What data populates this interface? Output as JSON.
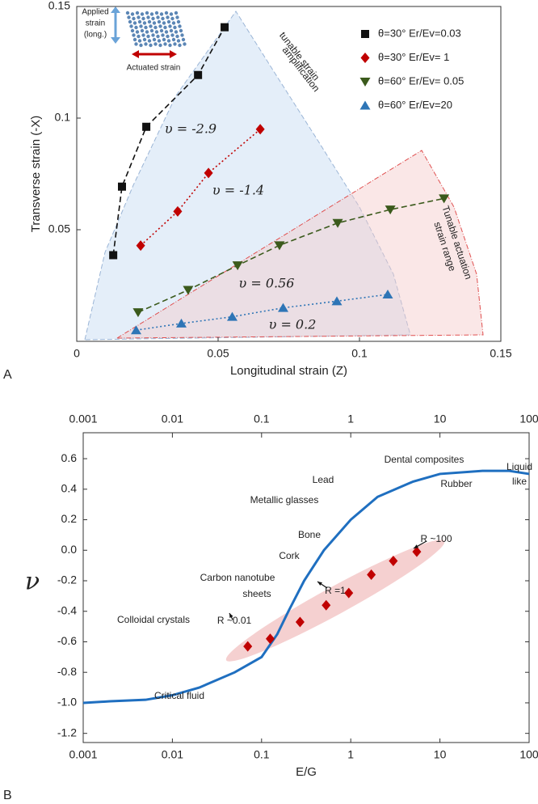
{
  "chart_data": [
    {
      "type": "line",
      "panel_label": "A",
      "x_label": "Longitudinal strain (Z)",
      "y_label": "Transverse strain (-X)",
      "xlim": [
        0,
        0.15
      ],
      "ylim": [
        0,
        0.15
      ],
      "xticks": [
        0,
        0.05,
        0.1,
        0.15
      ],
      "yticks": [
        0.05,
        0.1,
        0.15
      ],
      "legend": "upper right",
      "annotations": [
        "tunable strain",
        "amplification",
        "Tunable actuation",
        "strain range",
        "υ = -2.9",
        "υ = -1.4",
        "υ = 0.56",
        "υ = 0.2",
        "Applied",
        "strain",
        "(long.)",
        "Actuated strain"
      ],
      "series": [
        {
          "name": "θ=30°  Er/Ev=0.03",
          "color": "#111111",
          "marker": "square",
          "line": "dashed",
          "x": [
            0.0129,
            0.016,
            0.0246,
            0.0429,
            0.0523
          ],
          "values": [
            0.0386,
            0.0693,
            0.0961,
            0.1193,
            0.1407
          ]
        },
        {
          "name": "θ=30°  Er/Ev= 1",
          "color": "#c00000",
          "marker": "diamond",
          "line": "dotted",
          "x": [
            0.0226,
            0.0357,
            0.0466,
            0.0649
          ],
          "values": [
            0.0429,
            0.0582,
            0.0754,
            0.095
          ]
        },
        {
          "name": "θ=60°  Er/Ev= 0.05",
          "color": "#3b5a1c",
          "marker": "triangle-down",
          "line": "dashed",
          "x": [
            0.0217,
            0.0394,
            0.0569,
            0.0717,
            0.0923,
            0.1109,
            0.1299
          ],
          "values": [
            0.013,
            0.023,
            0.034,
            0.043,
            0.053,
            0.059,
            0.064
          ]
        },
        {
          "name": "θ=60°  Er/Ev=20",
          "color": "#2e75b6",
          "marker": "triangle-up",
          "line": "dotted",
          "x": [
            0.021,
            0.037,
            0.055,
            0.073,
            0.092,
            0.11
          ],
          "values": [
            0.005,
            0.008,
            0.011,
            0.015,
            0.018,
            0.021
          ]
        }
      ]
    },
    {
      "type": "line",
      "panel_label": "B",
      "x_label": "E/G",
      "y_label": "ν",
      "x_scale": "log",
      "xlim": [
        0.001,
        100
      ],
      "ylim": [
        -1.26,
        0.77
      ],
      "xticks": [
        0.001,
        0.01,
        0.1,
        1,
        10,
        100
      ],
      "yticks": [
        0.6,
        0.4,
        0.2,
        {
          "value": 0,
          "label": "0.0"
        },
        -0.2,
        -0.4,
        -0.6,
        -0.8,
        {
          "value": -1,
          "label": "-1.0"
        },
        -1.2
      ],
      "annotations": [
        "Dental composites",
        "Lead",
        "Rubber",
        "Liquid",
        "like",
        "Metallic glasses",
        "Bone",
        "Cork",
        "Carbon nanotube",
        "sheets",
        "Colloidal crystals",
        "Critical fluid",
        "R ~100",
        "R =1",
        "R ~0.01"
      ],
      "series": [
        {
          "color": "#1f6fc0",
          "marker": "none",
          "line": "solid",
          "x": [
            0.001,
            0.002,
            0.005,
            0.01,
            0.02,
            0.05,
            0.1,
            0.15,
            0.2,
            0.3,
            0.5,
            1,
            2,
            5,
            10,
            30,
            60,
            100
          ],
          "values": [
            -1.0,
            -0.99,
            -0.98,
            -0.95,
            -0.9,
            -0.8,
            -0.7,
            -0.55,
            -0.4,
            -0.2,
            0.0,
            0.2,
            0.35,
            0.45,
            0.5,
            0.52,
            0.52,
            0.5
          ]
        },
        {
          "color": "#c00000",
          "marker": "diamond",
          "line": "none",
          "x": [
            0.07,
            0.125,
            0.27,
            0.53,
            0.95,
            1.7,
            3.0,
            5.5
          ],
          "values": [
            -0.63,
            -0.58,
            -0.47,
            -0.36,
            -0.28,
            -0.16,
            -0.07,
            -0.01
          ]
        }
      ]
    }
  ]
}
